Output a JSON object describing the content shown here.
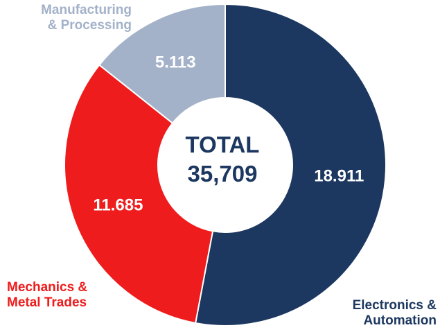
{
  "chart_data": {
    "type": "pie",
    "variant": "donut",
    "center_label": "TOTAL",
    "center_value": "35,709",
    "slices": [
      {
        "label_lines": [
          "Electronics &",
          "Automation"
        ],
        "value": 18911,
        "value_label": "18.911",
        "color": "#1c3760",
        "label_color": "#1c3760"
      },
      {
        "label_lines": [
          "Mechanics &",
          "Metal Trades"
        ],
        "value": 11685,
        "value_label": "11.685",
        "color": "#ee1c1c",
        "label_color": "#ee1c1c"
      },
      {
        "label_lines": [
          "Manufacturing",
          "& Processing"
        ],
        "value": 5113,
        "value_label": "5.113",
        "color": "#a3b2c9",
        "label_color": "#a3b2c9"
      }
    ]
  }
}
